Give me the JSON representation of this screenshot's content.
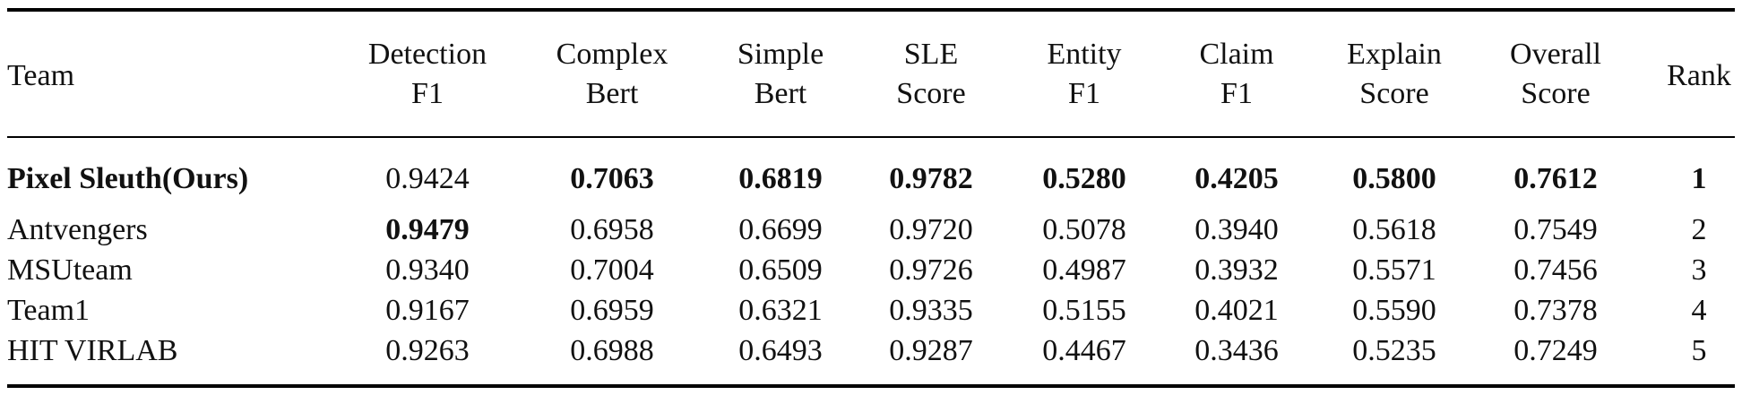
{
  "table": {
    "headers": [
      [
        "Team"
      ],
      [
        "Detection",
        "F1"
      ],
      [
        "Complex",
        "Bert"
      ],
      [
        "Simple",
        "Bert"
      ],
      [
        "SLE",
        "Score"
      ],
      [
        "Entity",
        "F1"
      ],
      [
        "Claim",
        "F1"
      ],
      [
        "Explain",
        "Score"
      ],
      [
        "Overall",
        "Score"
      ],
      [
        "Rank"
      ]
    ],
    "rows": [
      {
        "cells": [
          "Pixel Sleuth(Ours)",
          "0.9424",
          "0.7063",
          "0.6819",
          "0.9782",
          "0.5280",
          "0.4205",
          "0.5800",
          "0.7612",
          "1"
        ],
        "bold": [
          true,
          false,
          true,
          true,
          true,
          true,
          true,
          true,
          true,
          true
        ]
      },
      {
        "cells": [
          "Antvengers",
          "0.9479",
          "0.6958",
          "0.6699",
          "0.9720",
          "0.5078",
          "0.3940",
          "0.5618",
          "0.7549",
          "2"
        ],
        "bold": [
          false,
          true,
          false,
          false,
          false,
          false,
          false,
          false,
          false,
          false
        ]
      },
      {
        "cells": [
          "MSUteam",
          "0.9340",
          "0.7004",
          "0.6509",
          "0.9726",
          "0.4987",
          "0.3932",
          "0.5571",
          "0.7456",
          "3"
        ],
        "bold": [
          false,
          false,
          false,
          false,
          false,
          false,
          false,
          false,
          false,
          false
        ]
      },
      {
        "cells": [
          "Team1",
          "0.9167",
          "0.6959",
          "0.6321",
          "0.9335",
          "0.5155",
          "0.4021",
          "0.5590",
          "0.7378",
          "4"
        ],
        "bold": [
          false,
          false,
          false,
          false,
          false,
          false,
          false,
          false,
          false,
          false
        ]
      },
      {
        "cells": [
          "HIT VIRLAB",
          "0.9263",
          "0.6988",
          "0.6493",
          "0.9287",
          "0.4467",
          "0.3436",
          "0.5235",
          "0.7249",
          "5"
        ],
        "bold": [
          false,
          false,
          false,
          false,
          false,
          false,
          false,
          false,
          false,
          false
        ]
      }
    ]
  }
}
